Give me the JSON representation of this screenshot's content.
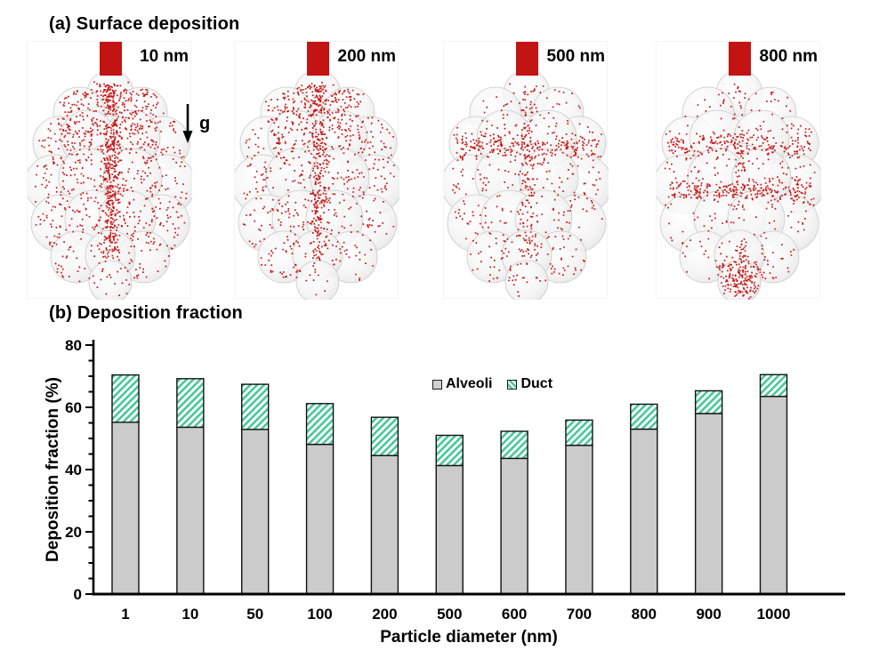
{
  "panel_a": {
    "title": "(a) Surface deposition",
    "gravity_label": "g",
    "particle_color": "#c81414",
    "sphere_color": "#f0f0f0",
    "clusters": [
      {
        "label": "10 nm",
        "deposition_pattern": "dense-diffuse-upper-and-channel"
      },
      {
        "label": "200 nm",
        "deposition_pattern": "diffuse-upper-and-channel"
      },
      {
        "label": "500 nm",
        "deposition_pattern": "upper-ring-band"
      },
      {
        "label": "800 nm",
        "deposition_pattern": "ring-bands-and-bottom-pool"
      }
    ]
  },
  "panel_b": {
    "title": "(b) Deposition fraction"
  },
  "chart_data": {
    "type": "bar",
    "stacked": true,
    "title": "",
    "xlabel": "Particle diameter (nm)",
    "ylabel": "Deposition fraction (%)",
    "categories": [
      "1",
      "10",
      "50",
      "100",
      "200",
      "500",
      "600",
      "700",
      "800",
      "900",
      "1000"
    ],
    "series": [
      {
        "name": "Alveoli",
        "color": "#cbcbcb",
        "fill": "solid",
        "values": [
          55.2,
          53.6,
          52.9,
          48.1,
          44.5,
          41.3,
          43.6,
          47.8,
          53.0,
          58.0,
          63.5
        ]
      },
      {
        "name": "Duct",
        "color": "#47c899",
        "fill": "diagonal-hatch",
        "values": [
          15.2,
          15.6,
          14.5,
          13.1,
          12.3,
          9.7,
          8.7,
          8.1,
          8.0,
          7.3,
          7.0
        ]
      }
    ],
    "totals": [
      70.4,
      69.2,
      67.4,
      61.2,
      56.8,
      51.0,
      52.3,
      55.9,
      61.0,
      65.3,
      70.5
    ],
    "ylim": [
      0,
      80
    ],
    "yticks": [
      0,
      20,
      40,
      60,
      80
    ],
    "minor_tick_step": 5,
    "legend_position": "upper-center-inside",
    "grid": false,
    "axis_color": "#000000"
  }
}
